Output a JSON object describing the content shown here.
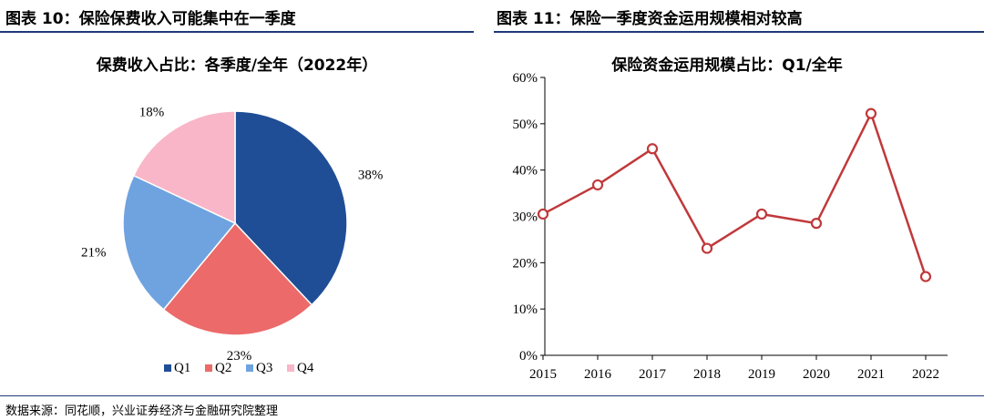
{
  "left_panel": {
    "heading": "图表 10：保险保费收入可能集中在一季度"
  },
  "right_panel": {
    "heading": "图表 11：保险一季度资金运用规模相对较高"
  },
  "source_note": "数据来源：同花顺，兴业证券经济与金融研究院整理",
  "colors": {
    "header_rule": "#1f3a7a",
    "Q1": "#1f4e96",
    "Q2": "#ec6a6a",
    "Q3": "#6fa3df",
    "Q4": "#f8b6c8",
    "line": "#c0393b"
  },
  "chart_data": [
    {
      "type": "pie",
      "title": "保费收入占比：各季度/全年（2022年）",
      "categories": [
        "Q1",
        "Q2",
        "Q3",
        "Q4"
      ],
      "values": [
        38,
        23,
        21,
        18
      ],
      "labels": [
        "38%",
        "23%",
        "21%",
        "18%"
      ],
      "legend": "bottom"
    },
    {
      "type": "line",
      "title": "保险资金运用规模占比：Q1/全年",
      "x": [
        "2015",
        "2016",
        "2017",
        "2018",
        "2019",
        "2020",
        "2021",
        "2022"
      ],
      "series": [
        {
          "values": [
            30.5,
            36.8,
            44.6,
            23.1,
            30.5,
            28.5,
            52.2,
            17.0
          ]
        }
      ],
      "ylim": [
        0,
        60
      ],
      "yticks": [
        0,
        10,
        20,
        30,
        40,
        50,
        60
      ],
      "ytick_labels": [
        "0%",
        "10%",
        "20%",
        "30%",
        "40%",
        "50%",
        "60%"
      ],
      "grid": false,
      "markers": "hollow-circle"
    }
  ]
}
